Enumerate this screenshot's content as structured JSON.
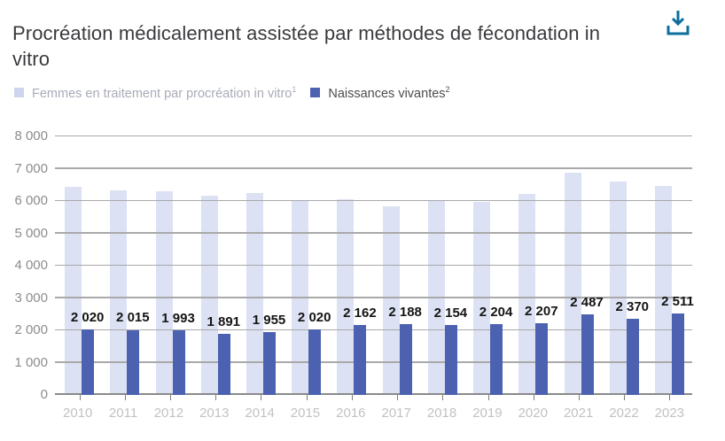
{
  "header": {
    "title": "Procréation médicalement assistée par méthodes de fécondation in vitro"
  },
  "toolbar": {
    "download_icon": "download-icon",
    "download_color": "#0d6e9e"
  },
  "legend": {
    "items": [
      {
        "label": "Femmes en traitement par procréation in vitro",
        "sup": "1",
        "swatch_color": "#cdd4ee",
        "text_color": "#a9abb8"
      },
      {
        "label": "Naissances vivantes",
        "sup": "2",
        "swatch_color": "#4c62b1",
        "text_color": "#4c4c50"
      }
    ]
  },
  "chart_data": {
    "type": "bar",
    "title": "Procréation médicalement assistée par méthodes de fécondation in vitro",
    "categories": [
      "2010",
      "2011",
      "2012",
      "2013",
      "2014",
      "2015",
      "2016",
      "2017",
      "2018",
      "2019",
      "2020",
      "2021",
      "2022",
      "2023"
    ],
    "series": [
      {
        "name": "Femmes en traitement par procréation in vitro¹",
        "color": "#dce1f4",
        "values_estimated_from_pixels": true,
        "values": [
          6430,
          6320,
          6300,
          6170,
          6240,
          6030,
          6050,
          5830,
          6040,
          5970,
          6210,
          6880,
          6600,
          6480
        ],
        "data_labels": null
      },
      {
        "name": "Naissances vivantes²",
        "color": "#4c62b1",
        "values": [
          2020,
          2015,
          1993,
          1891,
          1955,
          2020,
          2162,
          2188,
          2154,
          2204,
          2207,
          2487,
          2370,
          2511
        ],
        "data_labels": [
          "2 020",
          "2 015",
          "1 993",
          "1 891",
          "1 955",
          "2 020",
          "2 162",
          "2 188",
          "2 154",
          "2 204",
          "2 207",
          "2 487",
          "2 370",
          "2 511"
        ]
      }
    ],
    "xlabel": "",
    "ylabel": "",
    "ylim": [
      0,
      8000
    ],
    "yticks": [
      0,
      1000,
      2000,
      3000,
      4000,
      5000,
      6000,
      7000,
      8000
    ],
    "ytick_labels": [
      "0",
      "1 000",
      "2 000",
      "3 000",
      "4 000",
      "5 000",
      "6 000",
      "7 000",
      "8 000"
    ],
    "grid": true,
    "legend_position": "top"
  }
}
